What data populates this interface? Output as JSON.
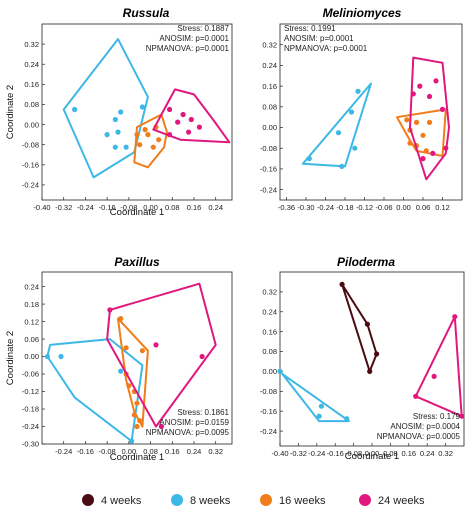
{
  "chart_data": [
    {
      "type": "scatter",
      "title": "Russula",
      "xlabel": "Coordinate 1",
      "ylabel": "Coordinate 2",
      "xlim": [
        -0.4,
        0.3
      ],
      "ylim": [
        -0.3,
        0.4
      ],
      "xticks": [
        "-0.40",
        "-0.32",
        "-0.24",
        "-0.16",
        "-0.08",
        "0.00",
        "0.08",
        "0.16",
        "0.24"
      ],
      "yticks": [
        "0.32",
        "0.24",
        "0.16",
        "0.08",
        "0.00",
        "-0.08",
        "-0.16",
        "-0.24"
      ],
      "stats": [
        "Stress: 0.1887",
        "ANOSIM: p=0.0001",
        "NPMANOVA: p=0.0001"
      ],
      "series": [
        {
          "key": "8w",
          "points": [
            [
              -0.28,
              0.06
            ],
            [
              -0.13,
              0.02
            ],
            [
              -0.12,
              -0.03
            ],
            [
              -0.11,
              0.05
            ],
            [
              -0.03,
              0.07
            ],
            [
              -0.13,
              -0.09
            ],
            [
              -0.16,
              -0.04
            ],
            [
              -0.09,
              -0.09
            ]
          ],
          "hull": [
            [
              -0.32,
              0.06
            ],
            [
              -0.12,
              0.34
            ],
            [
              -0.01,
              0.11
            ],
            [
              -0.06,
              -0.11
            ],
            [
              -0.21,
              -0.21
            ]
          ]
        },
        {
          "key": "16w",
          "points": [
            [
              -0.02,
              -0.02
            ],
            [
              0.02,
              -0.01
            ],
            [
              -0.01,
              -0.04
            ],
            [
              0.03,
              -0.06
            ],
            [
              0.01,
              -0.09
            ],
            [
              -0.04,
              -0.08
            ],
            [
              -0.05,
              -0.04
            ]
          ],
          "hull": [
            [
              -0.05,
              -0.01
            ],
            [
              0.04,
              0.04
            ],
            [
              0.06,
              -0.03
            ],
            [
              0.05,
              -0.09
            ],
            [
              -0.01,
              -0.17
            ],
            [
              -0.06,
              -0.15
            ]
          ]
        },
        {
          "key": "24w",
          "points": [
            [
              0.07,
              0.06
            ],
            [
              0.12,
              0.04
            ],
            [
              0.15,
              0.02
            ],
            [
              0.1,
              0.01
            ],
            [
              0.18,
              -0.01
            ],
            [
              0.14,
              -0.03
            ],
            [
              0.07,
              -0.04
            ]
          ],
          "hull": [
            [
              0.02,
              0.0
            ],
            [
              0.09,
              0.14
            ],
            [
              0.16,
              0.12
            ],
            [
              0.23,
              0.02
            ],
            [
              0.29,
              -0.07
            ],
            [
              0.11,
              -0.06
            ],
            [
              0.01,
              -0.02
            ]
          ]
        }
      ]
    },
    {
      "type": "scatter",
      "title": "Meliniomyces",
      "xlabel": "",
      "ylabel": "",
      "xlim": [
        -0.38,
        0.18
      ],
      "ylim": [
        -0.28,
        0.4
      ],
      "xticks": [
        "-0.36",
        "-0.30",
        "-0.24",
        "-0.18",
        "-0.12",
        "-0.06",
        "0.00",
        "0.06",
        "0.12"
      ],
      "yticks": [
        "0.32",
        "0.24",
        "0.16",
        "0.08",
        "0.00",
        "-0.08",
        "-0.16",
        "-0.24"
      ],
      "stats": [
        "Stress: 0.1991",
        "ANOSIM: p=0.0001",
        "NPMANOVA: p=0.0001"
      ],
      "series": [
        {
          "key": "8w",
          "points": [
            [
              -0.14,
              0.14
            ],
            [
              -0.16,
              0.06
            ],
            [
              -0.2,
              -0.02
            ],
            [
              -0.15,
              -0.08
            ],
            [
              -0.29,
              -0.12
            ],
            [
              -0.19,
              -0.15
            ]
          ],
          "hull": [
            [
              -0.31,
              -0.14
            ],
            [
              -0.1,
              0.17
            ],
            [
              -0.18,
              -0.15
            ]
          ]
        },
        {
          "key": "16w",
          "points": [
            [
              0.01,
              0.03
            ],
            [
              0.04,
              0.02
            ],
            [
              0.08,
              0.02
            ],
            [
              0.02,
              -0.01
            ],
            [
              0.06,
              -0.03
            ],
            [
              0.04,
              -0.07
            ],
            [
              0.02,
              -0.06
            ],
            [
              0.07,
              -0.09
            ]
          ],
          "hull": [
            [
              -0.02,
              0.04
            ],
            [
              0.13,
              0.07
            ],
            [
              0.12,
              -0.11
            ],
            [
              0.04,
              -0.09
            ],
            [
              0.02,
              -0.05
            ]
          ]
        },
        {
          "key": "24w",
          "points": [
            [
              0.08,
              0.12
            ],
            [
              0.03,
              0.13
            ],
            [
              0.05,
              0.16
            ],
            [
              0.1,
              0.18
            ],
            [
              0.12,
              0.07
            ],
            [
              0.13,
              -0.08
            ],
            [
              0.09,
              -0.1
            ],
            [
              0.06,
              -0.12
            ]
          ],
          "hull": [
            [
              0.03,
              0.27
            ],
            [
              0.12,
              0.25
            ],
            [
              0.14,
              0.0
            ],
            [
              0.13,
              -0.1
            ],
            [
              0.07,
              -0.2
            ],
            [
              0.02,
              0.0
            ]
          ]
        }
      ]
    },
    {
      "type": "scatter",
      "title": "Paxillus",
      "xlabel": "Coordinate 1",
      "ylabel": "Coordinate 2",
      "xlim": [
        -0.32,
        0.38
      ],
      "ylim": [
        -0.3,
        0.29
      ],
      "xticks": [
        "-0.24",
        "-0.16",
        "-0.08",
        "0.00",
        "0.08",
        "0.16",
        "0.24",
        "0.32"
      ],
      "yticks": [
        "0.24",
        "0.18",
        "0.12",
        "0.06",
        "0.00",
        "-0.06",
        "-0.12",
        "-0.18",
        "-0.24",
        "-0.30"
      ],
      "stats": [
        "Stress: 0.1861",
        "ANOSIM: p=0.0159",
        "NPMANOVA: p=0.0095"
      ],
      "series": [
        {
          "key": "8w",
          "points": [
            [
              -0.3,
              0.0
            ],
            [
              -0.25,
              0.0
            ],
            [
              0.01,
              -0.29
            ],
            [
              -0.03,
              -0.05
            ]
          ],
          "hull": [
            [
              -0.3,
              0.0
            ],
            [
              -0.29,
              0.04
            ],
            [
              -0.07,
              0.06
            ],
            [
              0.05,
              -0.03
            ],
            [
              0.01,
              -0.29
            ],
            [
              -0.2,
              -0.14
            ]
          ]
        },
        {
          "key": "16w",
          "points": [
            [
              -0.03,
              0.13
            ],
            [
              -0.01,
              0.03
            ],
            [
              -0.01,
              -0.06
            ],
            [
              0.0,
              -0.1
            ],
            [
              0.02,
              -0.12
            ],
            [
              0.03,
              -0.16
            ],
            [
              0.02,
              -0.2
            ],
            [
              0.04,
              -0.22
            ],
            [
              0.03,
              -0.24
            ],
            [
              0.05,
              0.02
            ]
          ],
          "hull": [
            [
              -0.04,
              0.13
            ],
            [
              0.07,
              0.02
            ],
            [
              0.05,
              -0.24
            ],
            [
              0.02,
              -0.19
            ],
            [
              -0.01,
              -0.08
            ]
          ]
        },
        {
          "key": "24w",
          "points": [
            [
              -0.07,
              0.16
            ],
            [
              0.1,
              0.04
            ],
            [
              0.27,
              0.0
            ],
            [
              0.12,
              -0.24
            ]
          ],
          "hull": [
            [
              -0.07,
              0.16
            ],
            [
              0.26,
              0.25
            ],
            [
              0.32,
              0.04
            ],
            [
              0.1,
              -0.24
            ],
            [
              -0.08,
              0.06
            ]
          ]
        }
      ]
    },
    {
      "type": "scatter",
      "title": "Piloderma",
      "xlabel": "Coordinate 1",
      "ylabel": "",
      "xlim": [
        -0.4,
        0.4
      ],
      "ylim": [
        -0.3,
        0.4
      ],
      "xticks": [
        "-0.40",
        "-0.32",
        "-0.24",
        "-0.16",
        "-0.08",
        "0.00",
        "0.08",
        "0.16",
        "0.24",
        "0.32"
      ],
      "yticks": [
        "0.32",
        "0.24",
        "0.16",
        "0.08",
        "0.00",
        "-0.08",
        "-0.16",
        "-0.24"
      ],
      "stats": [
        "Stress: 0.179",
        "ANOSIM: p=0.0004",
        "NPMANOVA: p=0.0005"
      ],
      "series": [
        {
          "key": "4w",
          "points": [
            [
              -0.13,
              0.35
            ],
            [
              -0.02,
              0.19
            ],
            [
              0.02,
              0.07
            ],
            [
              -0.01,
              0.0
            ]
          ],
          "hull": [
            [
              -0.13,
              0.35
            ],
            [
              -0.02,
              0.19
            ],
            [
              0.02,
              0.07
            ],
            [
              -0.01,
              0.0
            ]
          ]
        },
        {
          "key": "8w",
          "points": [
            [
              -0.4,
              0.0
            ],
            [
              -0.22,
              -0.14
            ],
            [
              -0.23,
              -0.18
            ],
            [
              -0.11,
              -0.19
            ]
          ],
          "hull": [
            [
              -0.39,
              -0.01
            ],
            [
              -0.1,
              -0.2
            ],
            [
              -0.23,
              -0.2
            ]
          ]
        },
        {
          "key": "24w",
          "points": [
            [
              0.19,
              -0.1
            ],
            [
              0.36,
              0.22
            ],
            [
              0.39,
              -0.18
            ],
            [
              0.27,
              -0.02
            ]
          ],
          "hull": [
            [
              0.19,
              -0.1
            ],
            [
              0.36,
              0.22
            ],
            [
              0.39,
              -0.18
            ]
          ]
        }
      ]
    }
  ],
  "legend": [
    {
      "key": "4w",
      "label": "4 weeks",
      "color": "#4a0c12"
    },
    {
      "key": "8w",
      "label": "8 weeks",
      "color": "#3db8e6"
    },
    {
      "key": "16w",
      "label": "16 weeks",
      "color": "#f07d1a"
    },
    {
      "key": "24w",
      "label": "24 weeks",
      "color": "#e0187e"
    }
  ]
}
